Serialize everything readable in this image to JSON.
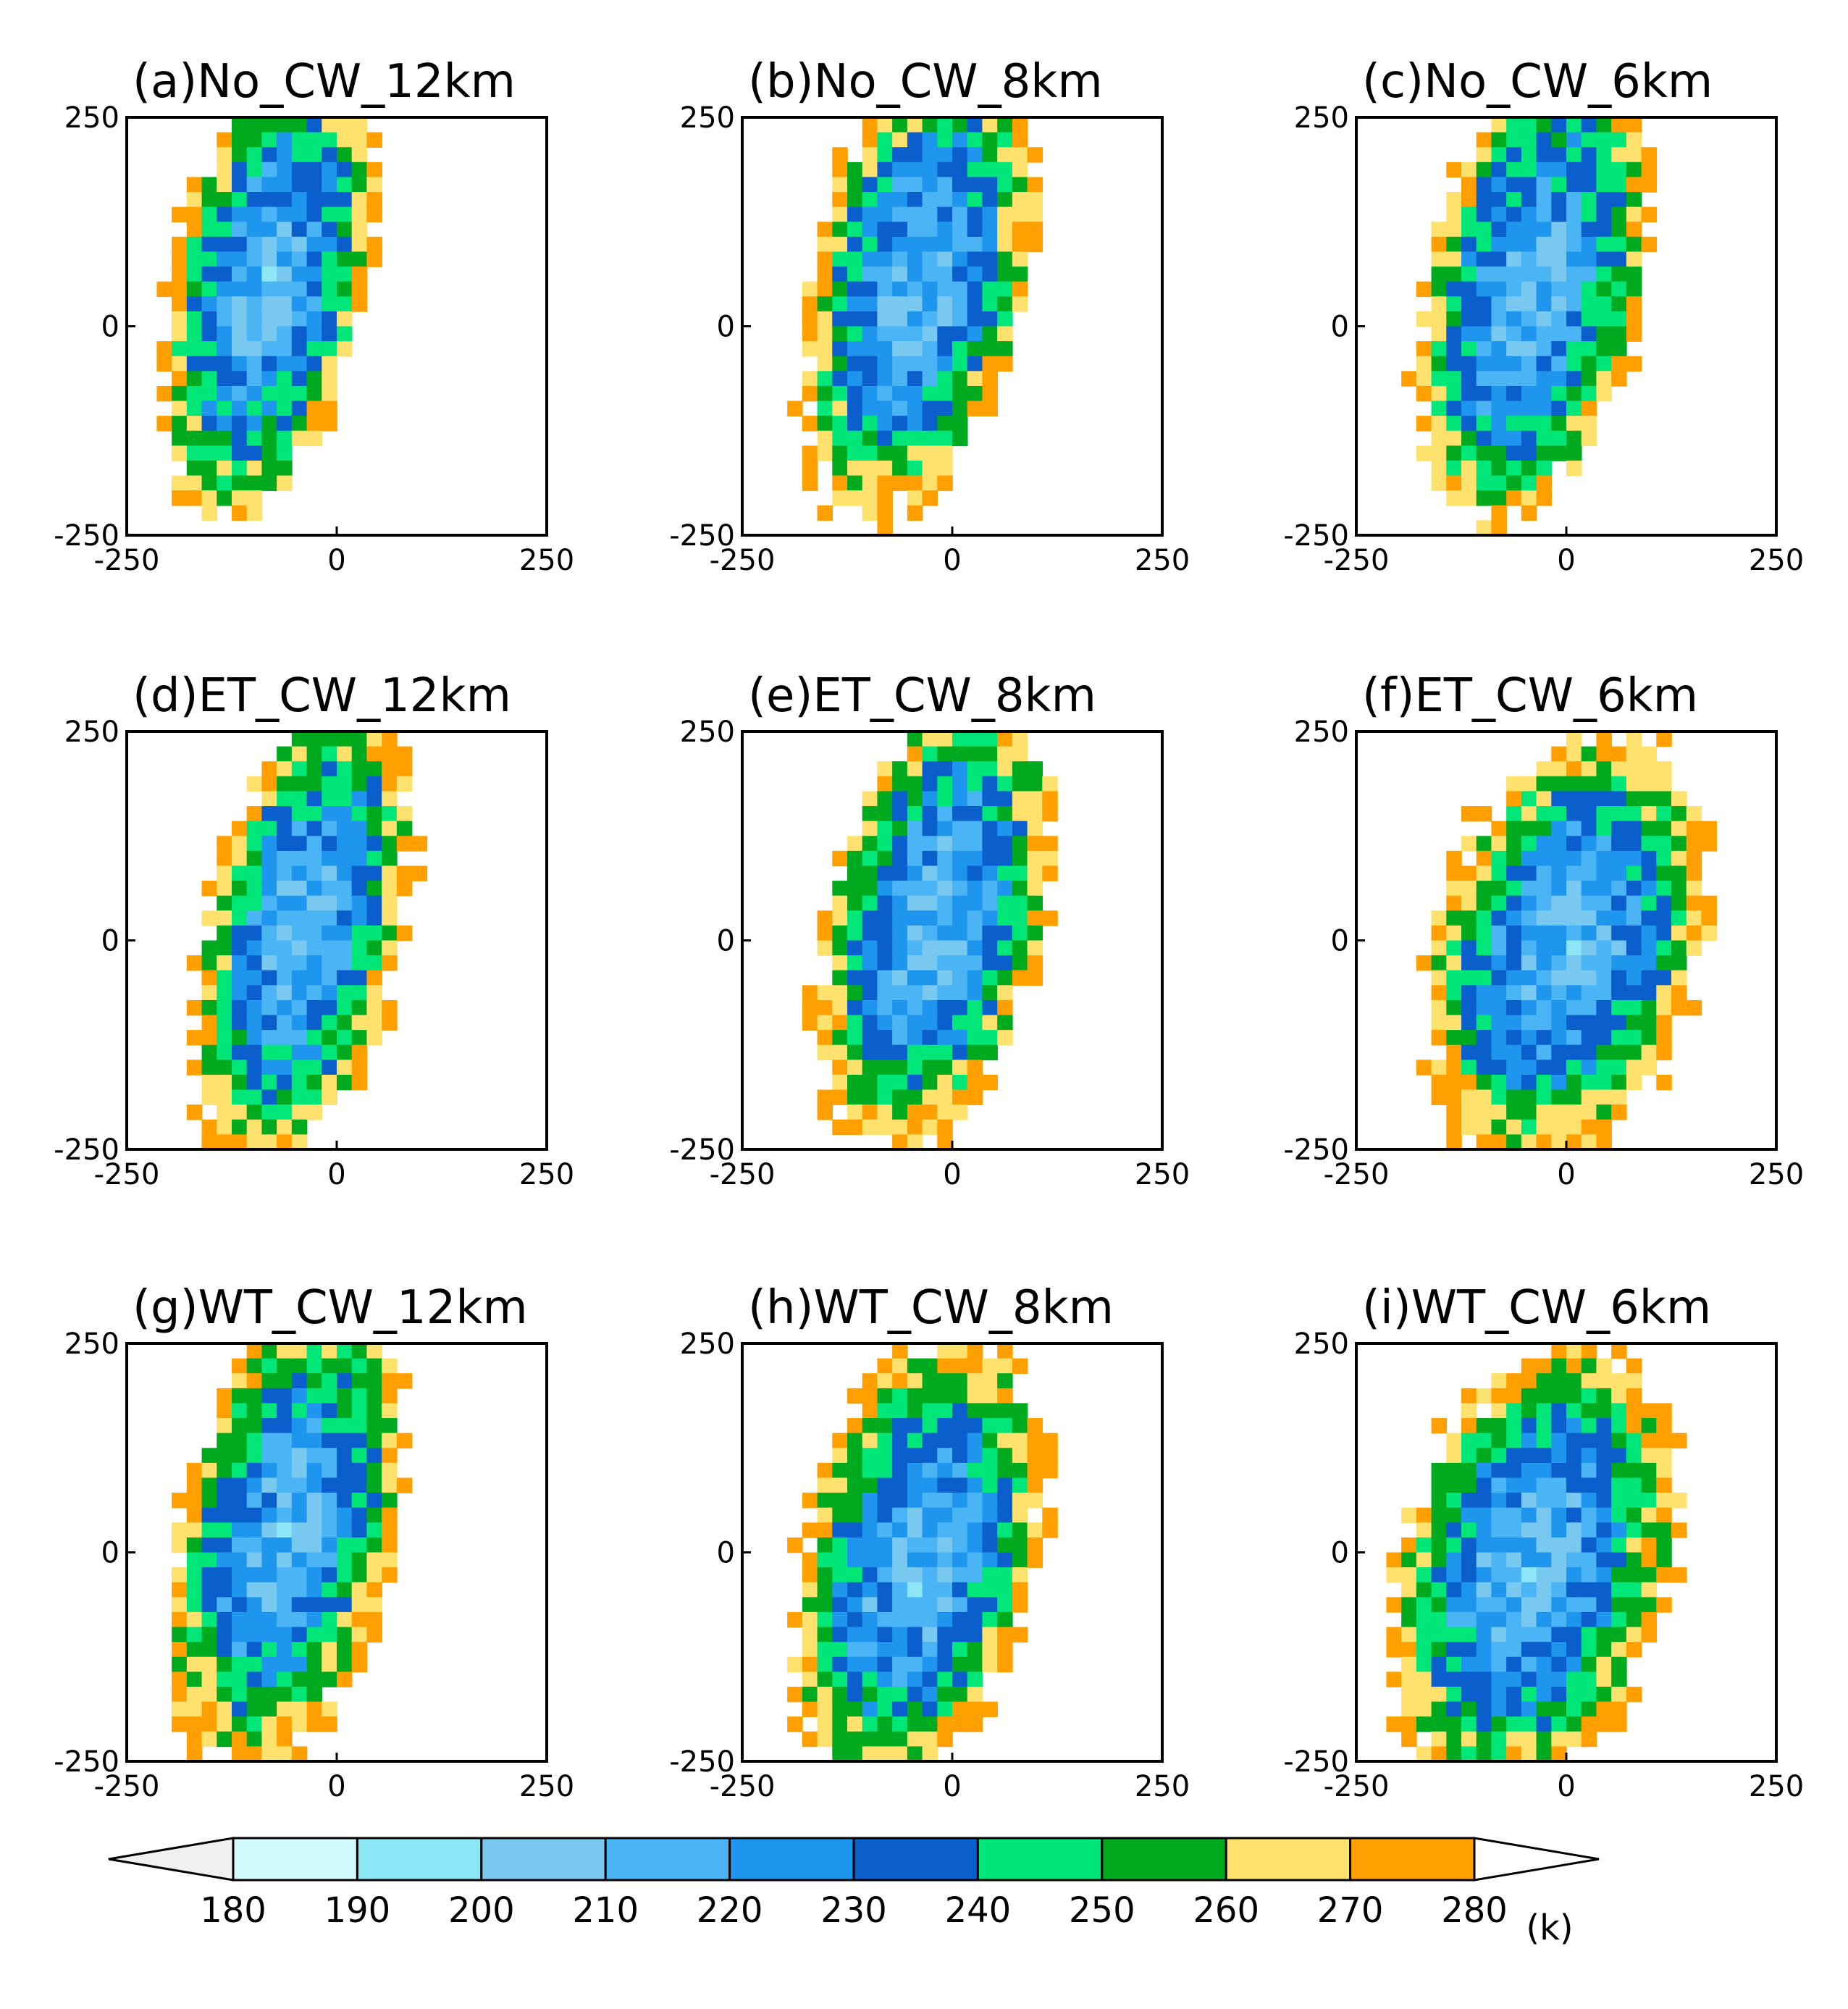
{
  "chart_data": {
    "type": "heatmap",
    "description_units": "(k)",
    "xlim": [
      -250,
      250
    ],
    "ylim": [
      -250,
      250
    ],
    "x_ticks": [
      "-250",
      "0",
      "250"
    ],
    "y_ticks": [
      "250",
      "0",
      "-250"
    ],
    "panels": [
      {
        "title": "(a)No_CW_12km",
        "cx": -80,
        "cy": 50,
        "wx": 110,
        "wy": 260
      },
      {
        "title": "(b)No_CW_8km",
        "cx": -40,
        "cy": 50,
        "wx": 120,
        "wy": 260
      },
      {
        "title": "(c)No_CW_6km",
        "cx": -40,
        "cy": 40,
        "wx": 120,
        "wy": 260
      },
      {
        "title": "(d)ET_CW_12km",
        "cx": -40,
        "cy": 10,
        "wx": 110,
        "wy": 260
      },
      {
        "title": "(e)ET_CW_8km",
        "cx": -20,
        "cy": 20,
        "wx": 120,
        "wy": 260
      },
      {
        "title": "(f)ET_CW_6km",
        "cx": 0,
        "cy": -10,
        "wx": 150,
        "wy": 240
      },
      {
        "title": "(g)WT_CW_12km",
        "cx": -60,
        "cy": 20,
        "wx": 120,
        "wy": 260
      },
      {
        "title": "(h)WT_CW_8km",
        "cx": -40,
        "cy": -10,
        "wx": 130,
        "wy": 250
      },
      {
        "title": "(i)WT_CW_6km",
        "cx": -40,
        "cy": -20,
        "wx": 150,
        "wy": 250
      }
    ],
    "colorbar": {
      "levels": [
        "180",
        "190",
        "200",
        "210",
        "220",
        "230",
        "240",
        "250",
        "260",
        "270",
        "280"
      ],
      "colors": [
        "#f0f0f0",
        "#d2fafa",
        "#8ce6f5",
        "#78c8f0",
        "#4bb4f5",
        "#1e96ee",
        "#0a5fcd",
        "#00e678",
        "#00aa1e",
        "#ffe16e",
        "#ffa000",
        "#ffffff"
      ],
      "unit_label": "(k)"
    }
  }
}
